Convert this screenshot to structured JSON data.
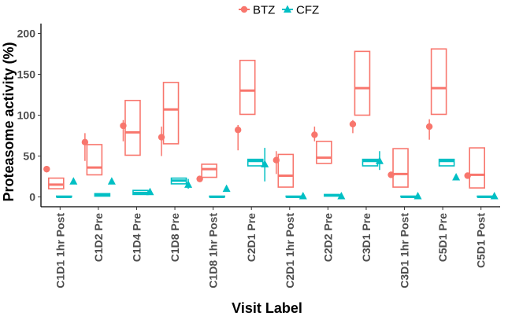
{
  "chart_data": {
    "type": "boxplot",
    "title": "",
    "xlabel": "Visit Label",
    "ylabel": "Proteasome activity (%)",
    "ylim": [
      -12,
      212
    ],
    "yticks": [
      0,
      50,
      100,
      150,
      200
    ],
    "grid": false,
    "legend_position": "top",
    "categories": [
      "C1D1 1hr Post",
      "C1D2 Pre",
      "C1D4 Pre",
      "C1D8 Pre",
      "C1D8 1hr Post",
      "C2D1 Pre",
      "C2D1 1hr Post",
      "C2D2 Pre",
      "C3D1 Pre",
      "C3D1 1hr Post",
      "C5D1 Pre",
      "C5D1 Post"
    ],
    "series": [
      {
        "name": "BTZ",
        "color": "#F8766D",
        "marker": "circle",
        "boxes": [
          {
            "lower": 10,
            "median": 15,
            "upper": 23
          },
          {
            "lower": 27,
            "median": 36,
            "upper": 64
          },
          {
            "lower": 51,
            "median": 79,
            "upper": 118
          },
          {
            "lower": 65,
            "median": 107,
            "upper": 140
          },
          {
            "lower": 24,
            "median": 34,
            "upper": 40
          },
          {
            "lower": 101,
            "median": 130,
            "upper": 167
          },
          {
            "lower": 12,
            "median": 26,
            "upper": 52
          },
          {
            "lower": 41,
            "median": 48,
            "upper": 68
          },
          {
            "lower": 100,
            "median": 133,
            "upper": 178
          },
          {
            "lower": 12,
            "median": 28,
            "upper": 59
          },
          {
            "lower": 101,
            "median": 133,
            "upper": 181
          },
          {
            "lower": 11,
            "median": 27,
            "upper": 60
          }
        ],
        "points": [
          {
            "y": 34,
            "lo": 30,
            "hi": 38
          },
          {
            "y": 67,
            "lo": 44,
            "hi": 78
          },
          {
            "y": 87,
            "lo": 68,
            "hi": 94
          },
          {
            "y": 73,
            "lo": 50,
            "hi": 86
          },
          {
            "y": 22,
            "lo": 20,
            "hi": 25
          },
          {
            "y": 82,
            "lo": 57,
            "hi": 88
          },
          {
            "y": 45,
            "lo": 28,
            "hi": 56
          },
          {
            "y": 76,
            "lo": 68,
            "hi": 86
          },
          {
            "y": 89,
            "lo": 78,
            "hi": 94
          },
          {
            "y": 27,
            "lo": 24,
            "hi": 31
          },
          {
            "y": 86,
            "lo": 70,
            "hi": 95
          },
          {
            "y": 26,
            "lo": 23,
            "hi": 29
          }
        ]
      },
      {
        "name": "CFZ",
        "color": "#00BFC4",
        "marker": "triangle",
        "boxes": [
          {
            "lower": 0,
            "median": 0,
            "upper": 1
          },
          {
            "lower": 1,
            "median": 2,
            "upper": 4
          },
          {
            "lower": 3,
            "median": 5,
            "upper": 8
          },
          {
            "lower": 16,
            "median": 20,
            "upper": 23
          },
          {
            "lower": 0,
            "median": 0,
            "upper": 1
          },
          {
            "lower": 38,
            "median": 44,
            "upper": 46
          },
          {
            "lower": 0,
            "median": 0,
            "upper": 1
          },
          {
            "lower": 1,
            "median": 2,
            "upper": 3
          },
          {
            "lower": 38,
            "median": 44,
            "upper": 46
          },
          {
            "lower": 0,
            "median": 0,
            "upper": 1
          },
          {
            "lower": 38,
            "median": 44,
            "upper": 46
          },
          {
            "lower": 0,
            "median": 0,
            "upper": 1
          }
        ],
        "points": [
          {
            "y": 19,
            "lo": 17,
            "hi": 21
          },
          {
            "y": 19,
            "lo": 18,
            "hi": 20
          },
          {
            "y": 6,
            "lo": 4,
            "hi": 8
          },
          {
            "y": 15,
            "lo": 10,
            "hi": 22
          },
          {
            "y": 10,
            "lo": 8,
            "hi": 12
          },
          {
            "y": 40,
            "lo": 19,
            "hi": 60
          },
          {
            "y": 1,
            "lo": 0,
            "hi": 2
          },
          {
            "y": 1,
            "lo": 0,
            "hi": 2
          },
          {
            "y": 44,
            "lo": 33,
            "hi": 56
          },
          {
            "y": 1,
            "lo": 0,
            "hi": 2
          },
          {
            "y": 24,
            "lo": 22,
            "hi": 27
          },
          {
            "y": 1,
            "lo": 0,
            "hi": 2
          }
        ]
      }
    ]
  }
}
